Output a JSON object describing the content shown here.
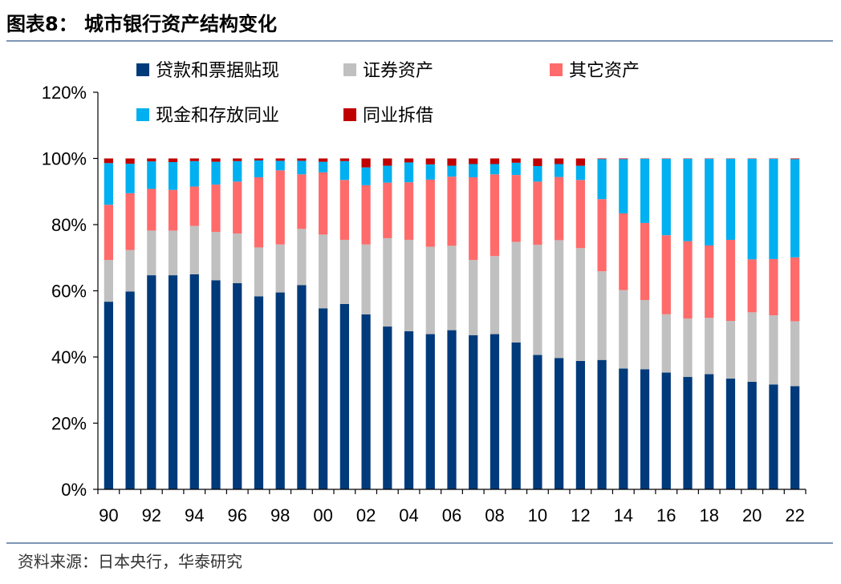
{
  "figure": {
    "title": "图表8：  城市银行资产结构变化",
    "source": "资料来源：日本央行，华泰研究"
  },
  "chart_data": {
    "type": "bar",
    "stacked": true,
    "title": "城市银行资产结构变化",
    "xlabel": "",
    "ylabel": "",
    "ylim": [
      0,
      120
    ],
    "yticks": [
      0,
      20,
      40,
      60,
      80,
      100,
      120
    ],
    "ytick_labels": [
      "0%",
      "20%",
      "40%",
      "60%",
      "80%",
      "100%",
      "120%"
    ],
    "xtick_labels": [
      "90",
      "92",
      "94",
      "96",
      "98",
      "00",
      "02",
      "04",
      "06",
      "08",
      "10",
      "12",
      "14",
      "16",
      "18",
      "20",
      "22"
    ],
    "xtick_every": 2,
    "categories": [
      "1990",
      "1991",
      "1992",
      "1993",
      "1994",
      "1995",
      "1996",
      "1997",
      "1998",
      "1999",
      "2000",
      "2001",
      "2002",
      "2003",
      "2004",
      "2005",
      "2006",
      "2007",
      "2008",
      "2009",
      "2010",
      "2011",
      "2012",
      "2013",
      "2014",
      "2015",
      "2016",
      "2017",
      "2018",
      "2019",
      "2020",
      "2021",
      "2022"
    ],
    "legend_position": "top",
    "series": [
      {
        "name": "贷款和票据贴现",
        "color": "#003a7a",
        "values": [
          56.7,
          59.8,
          64.7,
          64.7,
          65.0,
          63.2,
          62.3,
          58.3,
          59.5,
          61.7,
          54.7,
          56.0,
          52.9,
          49.2,
          47.8,
          46.9,
          48.1,
          46.6,
          46.9,
          44.4,
          40.6,
          39.7,
          38.8,
          39.1,
          36.5,
          36.3,
          35.3,
          34.0,
          34.8,
          33.5,
          32.5,
          31.7,
          31.2
        ]
      },
      {
        "name": "证券资产",
        "color": "#c0c0c0",
        "values": [
          12.6,
          12.5,
          13.5,
          13.5,
          14.6,
          14.6,
          15.0,
          14.8,
          14.5,
          17.0,
          22.3,
          19.4,
          21.1,
          26.7,
          27.6,
          26.4,
          25.5,
          22.7,
          23.6,
          30.4,
          33.3,
          35.6,
          34.1,
          26.8,
          23.7,
          20.9,
          17.6,
          17.6,
          17.0,
          17.4,
          21.0,
          20.9,
          19.6
        ]
      },
      {
        "name": "其它资产",
        "color": "#ff6b6b",
        "values": [
          16.7,
          17.2,
          12.6,
          12.3,
          11.9,
          14.3,
          15.7,
          21.2,
          22.4,
          16.5,
          18.8,
          18.1,
          17.9,
          16.8,
          17.4,
          20.3,
          20.9,
          25.0,
          24.7,
          20.2,
          19.1,
          19.1,
          20.6,
          21.8,
          23.2,
          23.3,
          23.9,
          23.4,
          21.9,
          24.5,
          16.0,
          17.0,
          19.3
        ]
      },
      {
        "name": "现金和存放同业",
        "color": "#00b0f0",
        "values": [
          12.6,
          8.9,
          8.3,
          8.4,
          7.7,
          6.9,
          6.2,
          5.1,
          2.9,
          4.1,
          3.2,
          5.7,
          5.4,
          5.1,
          6.0,
          4.6,
          3.3,
          4.0,
          3.1,
          3.7,
          4.7,
          3.9,
          4.3,
          12.1,
          16.4,
          19.4,
          23.1,
          24.9,
          26.2,
          24.5,
          30.4,
          30.3,
          29.7
        ]
      },
      {
        "name": "同业拆借",
        "color": "#c00000",
        "values": [
          1.4,
          1.6,
          0.9,
          1.1,
          0.8,
          1.0,
          0.8,
          0.6,
          0.7,
          0.7,
          1.0,
          0.8,
          2.7,
          2.2,
          1.2,
          1.8,
          2.2,
          1.7,
          1.7,
          1.3,
          2.3,
          1.7,
          2.2,
          0.2,
          0.2,
          0.1,
          0.1,
          0.1,
          0.1,
          0.1,
          0.1,
          0.1,
          0.2
        ]
      }
    ]
  }
}
